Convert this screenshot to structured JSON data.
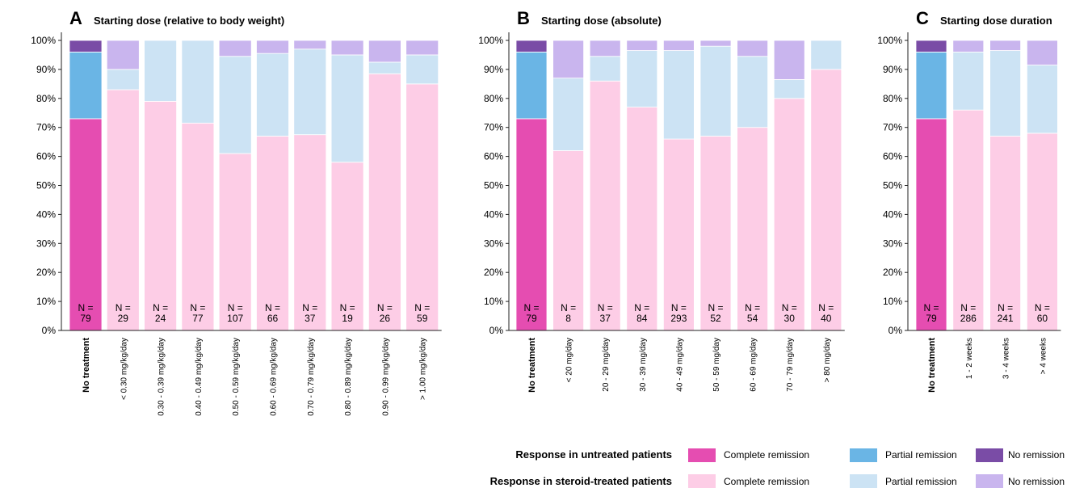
{
  "colors": {
    "untreated_complete": "#e54db1",
    "untreated_partial": "#6ab5e5",
    "untreated_none": "#7a4ca6",
    "treated_complete": "#fdcde6",
    "treated_partial": "#cce3f4",
    "treated_none": "#c9b5ee"
  },
  "y_ticks": [
    "0%",
    "10%",
    "20%",
    "30%",
    "40%",
    "50%",
    "60%",
    "70%",
    "80%",
    "90%",
    "100%"
  ],
  "chart_data": [
    {
      "type": "bar",
      "stacked": true,
      "letter": "A",
      "title": "Starting dose (relative to body weight)",
      "ylim": [
        0,
        100
      ],
      "categories": [
        "No treatment",
        "< 0.30 mg/kg/day",
        "0.30 - 0.39 mg/kg/day",
        "0.40 - 0.49 mg/kg/day",
        "0.50 - 0.59 mg/kg/day",
        "0.60 - 0.69 mg/kg/day",
        "0.70 - 0.79 mg/kg/day",
        "0.80 - 0.89 mg/kg/day",
        "0.90 - 0.99 mg/kg/day",
        "> 1.00 mg/kg/day"
      ],
      "n_prefix": "N =",
      "n": [
        "79",
        "29",
        "24",
        "77",
        "107",
        "66",
        "37",
        "19",
        "26",
        "59"
      ],
      "series": [
        {
          "name": "Complete remission",
          "values": [
            73,
            83,
            79,
            71.5,
            61,
            67,
            67.5,
            58,
            88.5,
            85
          ]
        },
        {
          "name": "Partial remission",
          "values": [
            23,
            7,
            21,
            28.5,
            33.5,
            28.5,
            29.5,
            37,
            4,
            10
          ]
        },
        {
          "name": "No remission",
          "values": [
            4,
            10,
            0,
            0,
            5.5,
            4.5,
            3,
            5,
            7.5,
            5
          ]
        }
      ]
    },
    {
      "type": "bar",
      "stacked": true,
      "letter": "B",
      "title": "Starting dose (absolute)",
      "ylim": [
        0,
        100
      ],
      "categories": [
        "No treatment",
        "< 20 mg/day",
        "20 - 29 mg/day",
        "30 - 39 mg/day",
        "40 - 49 mg/day",
        "50 - 59 mg/day",
        "60 - 69 mg/day",
        "70 - 79 mg/day",
        "> 80 mg/day"
      ],
      "n_prefix": "N =",
      "n": [
        "79",
        "8",
        "37",
        "84",
        "293",
        "52",
        "54",
        "30",
        "40"
      ],
      "series": [
        {
          "name": "Complete remission",
          "values": [
            73,
            62,
            86,
            77,
            66,
            67,
            70,
            80,
            90
          ]
        },
        {
          "name": "Partial remission",
          "values": [
            23,
            25,
            8.5,
            19.5,
            30.5,
            31,
            24.5,
            6.5,
            10
          ]
        },
        {
          "name": "No remission",
          "values": [
            4,
            13,
            5.5,
            3.5,
            3.5,
            2,
            5.5,
            13.5,
            0
          ]
        }
      ]
    },
    {
      "type": "bar",
      "stacked": true,
      "letter": "C",
      "title": "Starting dose duration",
      "ylim": [
        0,
        100
      ],
      "categories": [
        "No treatment",
        "1 - 2 weeks",
        "3 - 4 weeks",
        "> 4 weeks"
      ],
      "n_prefix": "N =",
      "n": [
        "79",
        "286",
        "241",
        "60"
      ],
      "series": [
        {
          "name": "Complete remission",
          "values": [
            73,
            76,
            67,
            68
          ]
        },
        {
          "name": "Partial remission",
          "values": [
            23,
            20,
            29.5,
            23.5
          ]
        },
        {
          "name": "No remission",
          "values": [
            4,
            4,
            3.5,
            8.5
          ]
        }
      ]
    }
  ],
  "legend": {
    "row_untreated": "Response in untreated patients",
    "row_treated": "Response in steroid-treated patients",
    "complete": "Complete remission",
    "partial": "Partial remission",
    "none": "No remission"
  }
}
